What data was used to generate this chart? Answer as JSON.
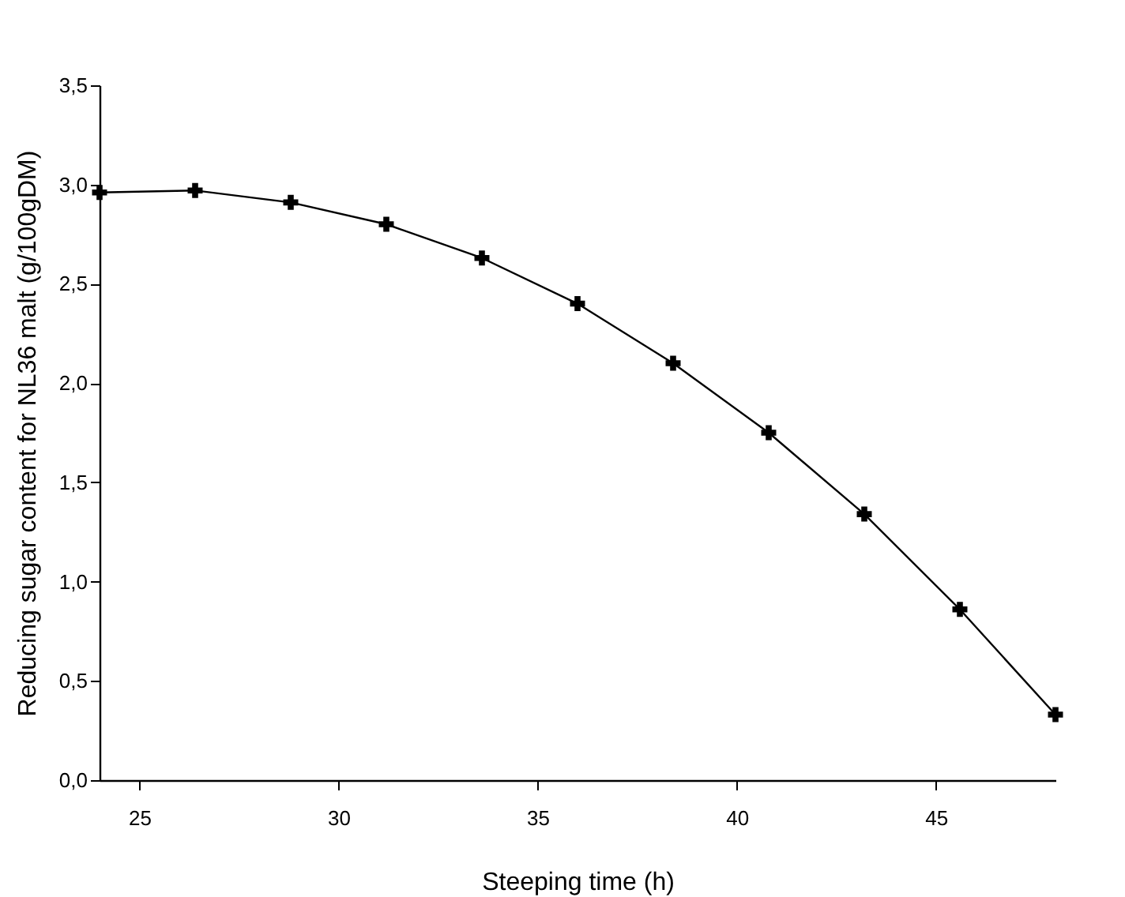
{
  "chart_data": {
    "type": "line",
    "xlabel": "Steeping time (h)",
    "ylabel": "Reducing sugar content for NL36 malt (g/100gDM)",
    "x": [
      24,
      26.4,
      28.8,
      31.2,
      33.6,
      36,
      38.4,
      40.8,
      43.2,
      45.6,
      48
    ],
    "series": [
      {
        "color": "#000000",
        "values": [
          2.96,
          2.97,
          2.91,
          2.8,
          2.63,
          2.4,
          2.1,
          1.75,
          1.34,
          0.86,
          0.33
        ]
      }
    ],
    "xlim": [
      24,
      48
    ],
    "xticks": [
      25,
      30,
      35,
      40,
      45
    ],
    "ylim": [
      0,
      3.5
    ],
    "yticks": [
      {
        "value": 0,
        "label": "0,0"
      },
      {
        "value": 0.5,
        "label": "0,5"
      },
      {
        "value": 1,
        "label": "1,0"
      },
      {
        "value": 1.5,
        "label": "1,5"
      },
      {
        "value": 2,
        "label": "2,0"
      },
      {
        "value": 2.5,
        "label": "2,5"
      },
      {
        "value": 3,
        "label": "3,0"
      },
      {
        "value": 3.5,
        "label": "3,5"
      }
    ],
    "grid": false,
    "marker": "cross",
    "line_style": "solid"
  }
}
